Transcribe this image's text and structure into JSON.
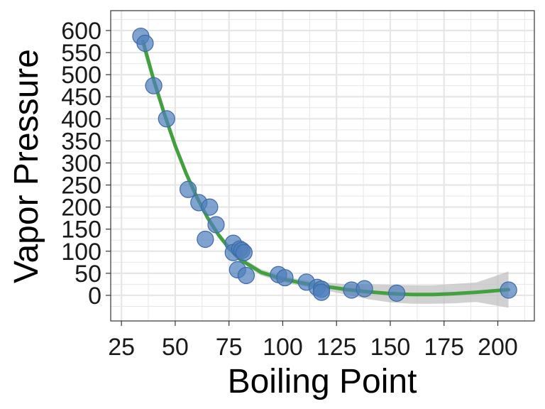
{
  "chart_data": {
    "type": "scatter",
    "xlabel": "Boiling Point",
    "ylabel": "Vapor Pressure",
    "xlim": [
      20,
      217
    ],
    "ylim": [
      -58,
      645
    ],
    "xticks": [
      25,
      50,
      75,
      100,
      125,
      150,
      175,
      200
    ],
    "yticks": [
      0,
      50,
      100,
      150,
      200,
      250,
      300,
      350,
      400,
      450,
      500,
      550,
      600
    ],
    "grid": true,
    "legend": "none",
    "colors": {
      "points": "#4f7fbc",
      "trend_line": "#43a03f",
      "confidence_band": "#bdbdbd",
      "grid": "#e6e6e6",
      "panel_border": "#333333"
    },
    "points": [
      {
        "x": 34,
        "y": 587
      },
      {
        "x": 36,
        "y": 571
      },
      {
        "x": 40,
        "y": 475
      },
      {
        "x": 46,
        "y": 400
      },
      {
        "x": 56,
        "y": 240
      },
      {
        "x": 61,
        "y": 210
      },
      {
        "x": 64,
        "y": 127
      },
      {
        "x": 66,
        "y": 200
      },
      {
        "x": 69,
        "y": 160
      },
      {
        "x": 77,
        "y": 118
      },
      {
        "x": 77,
        "y": 97
      },
      {
        "x": 79,
        "y": 58
      },
      {
        "x": 80,
        "y": 105
      },
      {
        "x": 81,
        "y": 102
      },
      {
        "x": 82,
        "y": 97
      },
      {
        "x": 83,
        "y": 45
      },
      {
        "x": 98,
        "y": 47
      },
      {
        "x": 101,
        "y": 40
      },
      {
        "x": 111,
        "y": 30
      },
      {
        "x": 116,
        "y": 18
      },
      {
        "x": 118,
        "y": 14
      },
      {
        "x": 118,
        "y": 7
      },
      {
        "x": 132,
        "y": 12
      },
      {
        "x": 138,
        "y": 15
      },
      {
        "x": 153,
        "y": 5
      },
      {
        "x": 205,
        "y": 12
      }
    ],
    "trend": {
      "x": [
        35,
        40,
        45,
        50,
        55,
        60,
        65,
        70,
        75,
        80,
        90,
        100,
        110,
        120,
        130,
        140,
        150,
        160,
        170,
        180,
        190,
        205
      ],
      "y": [
        575,
        488,
        410,
        339,
        277,
        223,
        176,
        138,
        107,
        82,
        52,
        37,
        27,
        20,
        13,
        8,
        4,
        2,
        2,
        4,
        7,
        13
      ],
      "lower": [
        556,
        474,
        398,
        330,
        269,
        215,
        169,
        131,
        100,
        76,
        45,
        30,
        20,
        11,
        1,
        -9,
        -16,
        -19,
        -19,
        -18,
        -15,
        -28
      ],
      "upper": [
        594,
        502,
        422,
        348,
        285,
        231,
        183,
        145,
        114,
        88,
        59,
        44,
        34,
        29,
        25,
        25,
        24,
        23,
        23,
        26,
        29,
        54
      ]
    }
  }
}
